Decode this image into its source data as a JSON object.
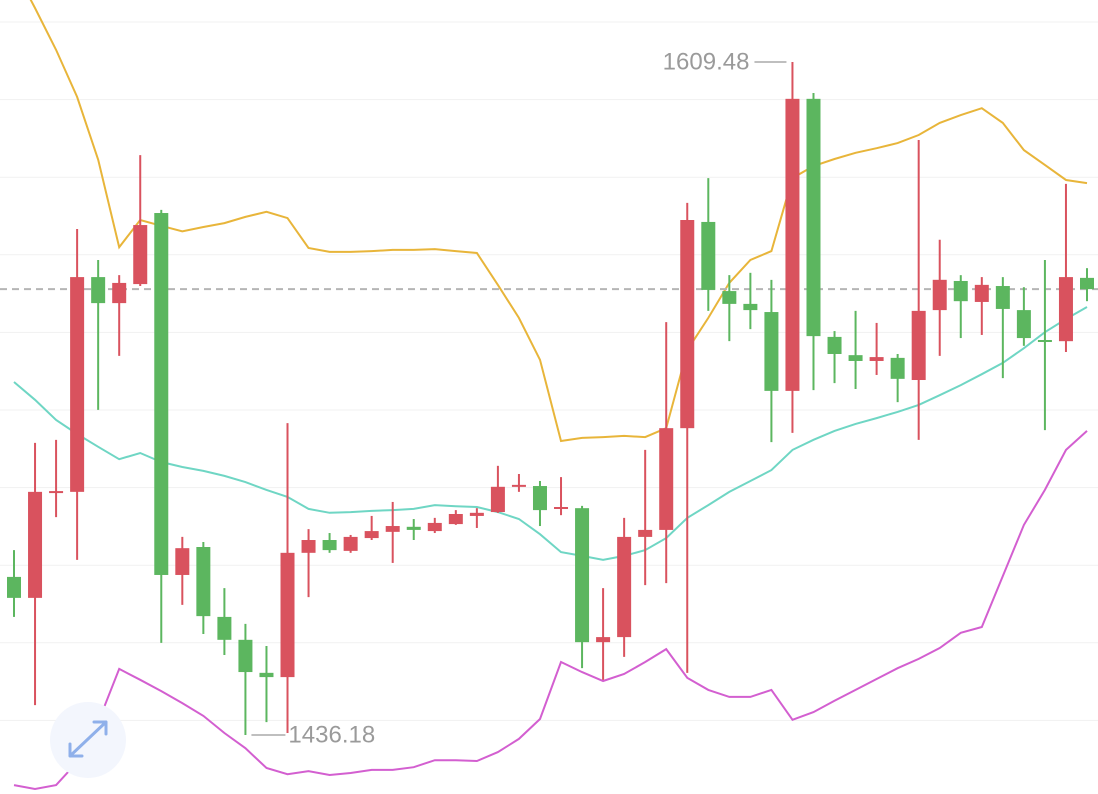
{
  "chart_data": {
    "type": "candlestick",
    "up_color": "#d9525e",
    "down_color": "#5cb65f",
    "ylim": [
      1421.0,
      1625.45
    ],
    "open": [
      1476.9,
      1471.5,
      1498.8,
      1498.8,
      1554.1,
      1547.4,
      1552.3,
      1570.6,
      1477.4,
      1484.6,
      1466.6,
      1460.7,
      1452.2,
      1451.1,
      1483.1,
      1486.4,
      1483.6,
      1486.9,
      1488.5,
      1489.8,
      1488.7,
      1490.5,
      1492.6,
      1493.6,
      1500.1,
      1500.3,
      1494.4,
      1494.6,
      1460.1,
      1461.4,
      1487.2,
      1489.0,
      1515.2,
      1568.3,
      1550.5,
      1547.2,
      1545.1,
      1524.8,
      1600.0,
      1538.7,
      1534.0,
      1532.5,
      1533.3,
      1527.6,
      1545.6,
      1553.1,
      1547.7,
      1551.8,
      1545.6,
      1537.9,
      1537.6,
      1553.9
    ],
    "high": [
      1483.8,
      1511.4,
      1512.2,
      1566.5,
      1558.5,
      1554.6,
      1585.5,
      1571.4,
      1487.2,
      1485.9,
      1474.0,
      1464.8,
      1459.1,
      1516.5,
      1489.2,
      1488.2,
      1487.7,
      1492.6,
      1496.2,
      1491.8,
      1492.1,
      1494.1,
      1494.6,
      1505.5,
      1503.4,
      1501.6,
      1502.6,
      1495.2,
      1474.0,
      1492.1,
      1509.6,
      1542.5,
      1573.2,
      1579.6,
      1554.6,
      1555.2,
      1553.4,
      1609.48,
      1601.5,
      1540.2,
      1545.4,
      1542.3,
      1534.3,
      1589.4,
      1563.7,
      1554.6,
      1554.1,
      1554.1,
      1551.5,
      1558.5,
      1578.1,
      1556.4
    ],
    "low": [
      1466.6,
      1443.9,
      1492.3,
      1481.3,
      1519.9,
      1533.8,
      1551.8,
      1459.9,
      1469.7,
      1462.2,
      1456.8,
      1436.18,
      1439.5,
      1436.7,
      1471.7,
      1483.1,
      1483.1,
      1486.4,
      1480.5,
      1486.4,
      1488.2,
      1490.3,
      1489.5,
      1493.4,
      1498.8,
      1490.0,
      1492.8,
      1453.4,
      1450.4,
      1456.3,
      1474.8,
      1475.3,
      1452.2,
      1545.4,
      1537.6,
      1540.7,
      1511.6,
      1514.0,
      1525.0,
      1526.8,
      1525.3,
      1528.9,
      1521.9,
      1512.2,
      1533.8,
      1538.4,
      1539.2,
      1528.1,
      1536.4,
      1514.7,
      1534.8,
      1547.9
    ],
    "close": [
      1471.5,
      1498.8,
      1499.0,
      1554.1,
      1547.4,
      1552.6,
      1567.5,
      1477.4,
      1484.3,
      1466.8,
      1460.7,
      1452.4,
      1451.1,
      1483.1,
      1486.4,
      1483.8,
      1487.2,
      1488.7,
      1490.0,
      1489.0,
      1490.8,
      1493.1,
      1493.4,
      1500.1,
      1500.6,
      1494.1,
      1494.9,
      1460.1,
      1461.4,
      1487.2,
      1489.0,
      1515.2,
      1568.8,
      1550.8,
      1547.2,
      1545.6,
      1524.8,
      1600.0,
      1538.9,
      1534.3,
      1532.5,
      1533.5,
      1527.9,
      1545.4,
      1553.4,
      1547.9,
      1552.1,
      1545.9,
      1538.4,
      1537.6,
      1554.1,
      1551.0
    ],
    "bands": [
      {
        "color": "#e8b53a",
        "values": [
          1633.7,
          1623.4,
          1612.6,
          1600.5,
          1584.3,
          1561.8,
          1568.8,
          1567.3,
          1565.9,
          1567.0,
          1568.0,
          1569.6,
          1570.9,
          1569.3,
          1561.6,
          1560.6,
          1560.6,
          1560.8,
          1561.1,
          1561.1,
          1561.3,
          1560.8,
          1560.3,
          1552.1,
          1543.6,
          1532.8,
          1511.9,
          1512.7,
          1512.9,
          1513.2,
          1512.9,
          1515.2,
          1535.3,
          1543.6,
          1552.6,
          1558.5,
          1560.8,
          1579.6,
          1582.7,
          1584.5,
          1586.1,
          1587.3,
          1588.6,
          1590.7,
          1593.8,
          1595.8,
          1597.6,
          1593.8,
          1586.8,
          1583.0,
          1579.1,
          1578.3
        ]
      },
      {
        "color": "#6fd6c4",
        "values": [
          1527.1,
          1522.5,
          1517.3,
          1513.7,
          1510.4,
          1507.2,
          1508.8,
          1506.5,
          1505.2,
          1504.2,
          1502.9,
          1501.3,
          1499.3,
          1497.5,
          1494.4,
          1493.4,
          1493.6,
          1493.9,
          1494.1,
          1494.4,
          1495.4,
          1495.1,
          1494.9,
          1493.6,
          1491.8,
          1487.9,
          1483.3,
          1482.3,
          1481.3,
          1482.3,
          1483.8,
          1486.9,
          1492.1,
          1495.4,
          1498.8,
          1501.6,
          1504.4,
          1509.6,
          1512.2,
          1514.5,
          1516.3,
          1517.8,
          1519.4,
          1521.2,
          1523.7,
          1526.3,
          1529.1,
          1532.0,
          1535.8,
          1539.9,
          1543.3,
          1546.4
        ]
      },
      {
        "color": "#d35fd0",
        "values": [
          1423.3,
          1422.3,
          1423.3,
          1429.2,
          1439.5,
          1453.2,
          1450.4,
          1447.5,
          1444.4,
          1441.1,
          1436.7,
          1432.8,
          1427.7,
          1426.1,
          1426.9,
          1425.9,
          1426.4,
          1427.2,
          1427.2,
          1427.9,
          1429.7,
          1429.7,
          1429.5,
          1431.8,
          1435.2,
          1440.3,
          1455.0,
          1452.4,
          1450.1,
          1451.9,
          1455.0,
          1458.3,
          1450.9,
          1447.8,
          1446.0,
          1446.0,
          1447.8,
          1440.1,
          1442.1,
          1445.0,
          1447.8,
          1450.6,
          1453.4,
          1455.8,
          1458.6,
          1462.5,
          1464.0,
          1477.1,
          1490.3,
          1499.3,
          1509.6,
          1514.5
        ]
      }
    ]
  }
}
